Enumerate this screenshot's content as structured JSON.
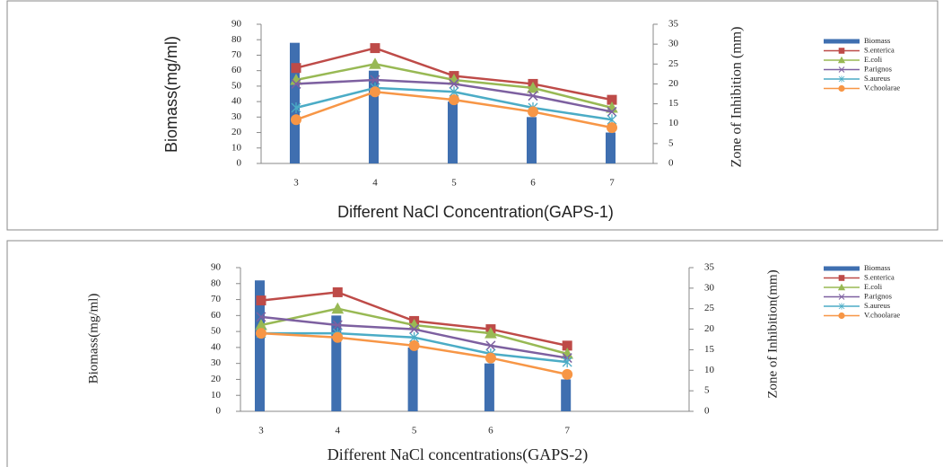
{
  "chart_data": [
    {
      "type": "combo",
      "x_label": "Different NaCl  Concentration(GAPS-1)",
      "y_label": "Biomass(mg/ml)",
      "y2_label": "Zone of  Inhibition (mm)",
      "categories": [
        "3",
        "4",
        "5",
        "6",
        "7"
      ],
      "ylim": [
        0,
        90
      ],
      "yticks": [
        0,
        10,
        20,
        30,
        40,
        50,
        60,
        70,
        80,
        90
      ],
      "y2lim": [
        0,
        35
      ],
      "y2ticks": [
        0,
        5,
        10,
        15,
        20,
        25,
        30,
        35
      ],
      "legend": "right",
      "series": [
        {
          "name": "Biomass",
          "type": "bar",
          "color": "#3f6fb0",
          "values": [
            78,
            60,
            40,
            30,
            20
          ]
        },
        {
          "name": "S.enterica",
          "type": "line",
          "marker": "square",
          "axis": "y2",
          "color": "#be4b48",
          "values": [
            24,
            29,
            22,
            20,
            16
          ]
        },
        {
          "name": "E.coli",
          "type": "line",
          "marker": "triangle",
          "axis": "y2",
          "color": "#98b954",
          "values": [
            21,
            25,
            21,
            19,
            14
          ]
        },
        {
          "name": "P.arignos",
          "type": "line",
          "marker": "x",
          "axis": "y2",
          "color": "#7d60a0",
          "values": [
            20,
            21,
            20,
            17,
            13
          ]
        },
        {
          "name": "S.aureus",
          "type": "line",
          "marker": "star",
          "axis": "y2",
          "color": "#4bacc6",
          "values": [
            14,
            19,
            18,
            14,
            11
          ]
        },
        {
          "name": "V.choolarae",
          "type": "line",
          "marker": "circle",
          "axis": "y2",
          "color": "#f79646",
          "values": [
            11,
            18,
            16,
            13,
            9
          ]
        }
      ]
    },
    {
      "type": "combo",
      "x_label": "Different NaCl concentrations(GAPS-2)",
      "y_label": "Biomass(mg/ml)",
      "y2_label": "Zone of  Inhibition(mm)",
      "categories": [
        "3",
        "4",
        "5",
        "6",
        "7"
      ],
      "ylim": [
        0,
        90
      ],
      "yticks": [
        0,
        10,
        20,
        30,
        40,
        50,
        60,
        70,
        80,
        90
      ],
      "y2lim": [
        0,
        35
      ],
      "y2ticks": [
        0,
        5,
        10,
        15,
        20,
        25,
        30,
        35
      ],
      "legend": "right",
      "series": [
        {
          "name": "Biomass",
          "type": "bar",
          "color": "#3f6fb0",
          "values": [
            82,
            60,
            40,
            30,
            20
          ]
        },
        {
          "name": "S.enterica",
          "type": "line",
          "marker": "square",
          "axis": "y2",
          "color": "#be4b48",
          "values": [
            27,
            29,
            22,
            20,
            16
          ]
        },
        {
          "name": "E.coli",
          "type": "line",
          "marker": "triangle",
          "axis": "y2",
          "color": "#98b954",
          "values": [
            21,
            25,
            21,
            19,
            14
          ]
        },
        {
          "name": "P.arignos",
          "type": "line",
          "marker": "x",
          "axis": "y2",
          "color": "#7d60a0",
          "values": [
            23,
            21,
            20,
            16,
            13
          ]
        },
        {
          "name": "S.aureus",
          "type": "line",
          "marker": "star",
          "axis": "y2",
          "color": "#4bacc6",
          "values": [
            19,
            19,
            18,
            14,
            12
          ]
        },
        {
          "name": "V.choolarae",
          "type": "line",
          "marker": "circle",
          "axis": "y2",
          "color": "#f79646",
          "values": [
            19,
            18,
            16,
            13,
            9
          ]
        }
      ]
    }
  ]
}
